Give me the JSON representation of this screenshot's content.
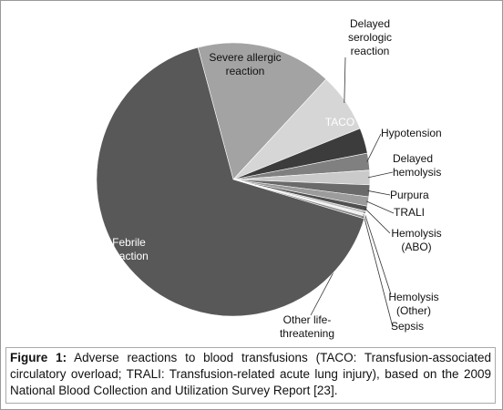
{
  "chart_data": {
    "type": "pie",
    "categories": [
      "Severe allergic reaction",
      "Delayed serologic reaction",
      "TACO",
      "Hypotension",
      "Delayed hemolysis",
      "Purpura",
      "TRALI",
      "Hemolysis (ABO)",
      "Hemolysis (Other)",
      "Sepsis",
      "Other life-threatening",
      "Febrile reaction"
    ],
    "values": [
      16,
      7,
      3,
      2,
      1.7,
      1.4,
      1.1,
      0.6,
      0.3,
      0.3,
      0.3,
      66
    ],
    "colors": [
      "#a3a3a3",
      "#d6d6d6",
      "#3c3c3c",
      "#808080",
      "#cacaca",
      "#6a6a6a",
      "#9c9c9c",
      "#505050",
      "#bcbcbc",
      "#efefef",
      "#8a8a8a",
      "#585858"
    ]
  },
  "caption": {
    "label": "Figure 1:",
    "text": "Adverse reactions to blood transfusions (TACO: Transfusion-associated circulatory overload; TRALI: Transfusion-related acute lung injury), based on the 2009 National Blood Collection and Utilization Survey Report [23]."
  }
}
